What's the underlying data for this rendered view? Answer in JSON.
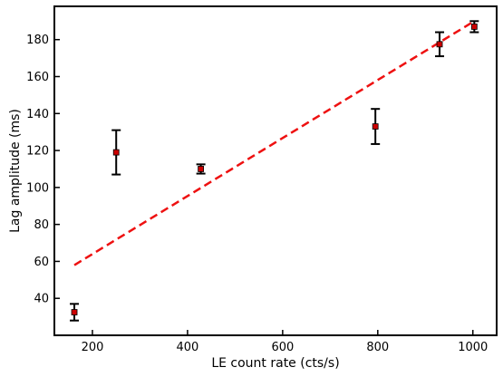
{
  "chart_data": {
    "type": "scatter",
    "xlabel": "LE count rate (cts/s)",
    "ylabel": "Lag amplitude (ms)",
    "xlim": [
      120,
      1050
    ],
    "ylim": [
      20,
      198
    ],
    "xticks": [
      200,
      400,
      600,
      800,
      1000
    ],
    "yticks": [
      40,
      60,
      80,
      100,
      120,
      140,
      160,
      180
    ],
    "grid": false,
    "series": [
      {
        "kind": "errorbar",
        "color": "#cc0000",
        "errcolor": "#000000",
        "points": [
          {
            "x": 162,
            "y": 32.5,
            "err": 4.5
          },
          {
            "x": 250,
            "y": 119,
            "err": 12
          },
          {
            "x": 428,
            "y": 110,
            "err": 2.5
          },
          {
            "x": 795,
            "y": 133,
            "err": 9.5
          },
          {
            "x": 930,
            "y": 177.5,
            "err": 6.5
          },
          {
            "x": 1003,
            "y": 187,
            "err": 3
          }
        ]
      },
      {
        "kind": "fit-line",
        "color": "#ee1111",
        "dashed": true,
        "x": [
          162,
          1003
        ],
        "y": [
          58,
          190
        ]
      }
    ]
  }
}
